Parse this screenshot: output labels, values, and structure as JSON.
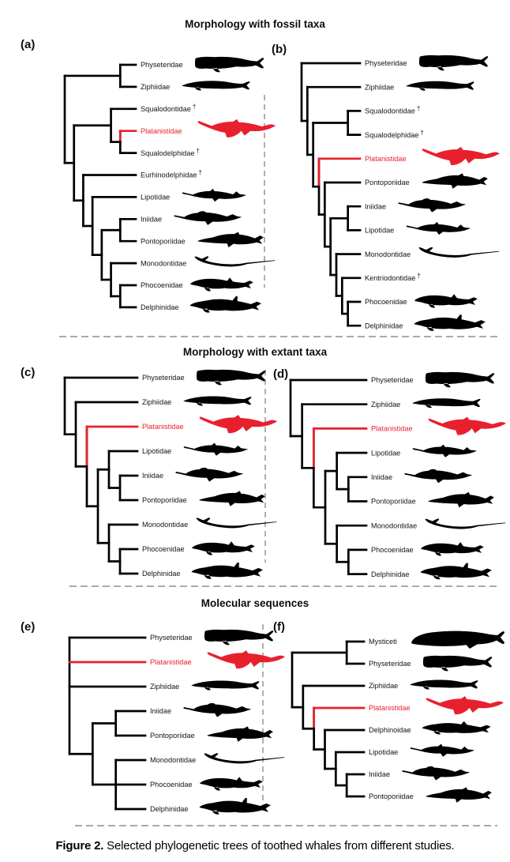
{
  "sections": [
    {
      "title": "Morphology with fossil taxa"
    },
    {
      "title": "Morphology with extant taxa"
    },
    {
      "title": "Molecular sequences"
    }
  ],
  "caption": {
    "label": "Figure 2.",
    "text": " Selected phylogenetic trees of toothed whales from different studies."
  },
  "colors": {
    "highlight": "#e8202e",
    "branch": "#000000",
    "separator": "#8d8d8d",
    "label": "#151515"
  },
  "panels": {
    "a": {
      "label": "(a)",
      "highlight_stem": true,
      "taxa": [
        {
          "name": "Physeteridae",
          "silhouette": "sperm-whale"
        },
        {
          "name": "Ziphiidae",
          "silhouette": "beaked-whale"
        },
        {
          "name": "Squalodontidae",
          "extinct": true
        },
        {
          "name": "Platanistidae",
          "silhouette": "platanistid",
          "highlight": true
        },
        {
          "name": "Squalodelphidae",
          "extinct": true
        },
        {
          "name": "Eurhinodelphidae",
          "extinct": true
        },
        {
          "name": "Lipotidae",
          "silhouette": "lipotid"
        },
        {
          "name": "Iniidae",
          "silhouette": "iniid"
        },
        {
          "name": "Pontoporiidae",
          "silhouette": "pontoporiid"
        },
        {
          "name": "Monodontidae",
          "silhouette": "monodontid"
        },
        {
          "name": "Phocoenidae",
          "silhouette": "phocoenid"
        },
        {
          "name": "Delphinidae",
          "silhouette": "delphinid"
        }
      ],
      "topology": [
        [
          0,
          1
        ],
        [
          [
            2,
            [
              3,
              4
            ]
          ],
          [
            5,
            [
              6,
              [
                [
                  7,
                  8
                ],
                [
                  9,
                  [
                    10,
                    11
                  ]
                ]
              ]
            ]
          ]
        ]
      ]
    },
    "b": {
      "label": "(b)",
      "highlight_stem": true,
      "taxa": [
        {
          "name": "Physeteridae",
          "silhouette": "sperm-whale"
        },
        {
          "name": "Ziphiidae",
          "silhouette": "beaked-whale"
        },
        {
          "name": "Squalodontidae",
          "extinct": true
        },
        {
          "name": "Squalodelphidae",
          "extinct": true
        },
        {
          "name": "Platanistidae",
          "silhouette": "platanistid",
          "highlight": true
        },
        {
          "name": "Pontoporiidae",
          "silhouette": "pontoporiid"
        },
        {
          "name": "Iniidae",
          "silhouette": "iniid"
        },
        {
          "name": "Lipotidae",
          "silhouette": "lipotid"
        },
        {
          "name": "Monodontidae",
          "silhouette": "monodontid"
        },
        {
          "name": "Kentriodontidae",
          "extinct": true
        },
        {
          "name": "Phocoenidae",
          "silhouette": "phocoenid"
        },
        {
          "name": "Delphinidae",
          "silhouette": "delphinid"
        }
      ],
      "topology": [
        0,
        [
          1,
          [
            [
              2,
              3
            ],
            [
              4,
              [
                5,
                [
                  [
                    6,
                    7
                  ],
                  [
                    8,
                    [
                      9,
                      [
                        10,
                        11
                      ]
                    ]
                  ]
                ]
              ]
            ]
          ]
        ]
      ]
    },
    "c": {
      "label": "(c)",
      "highlight_stem": true,
      "taxa": [
        {
          "name": "Physeteridae",
          "silhouette": "sperm-whale"
        },
        {
          "name": "Ziphiidae",
          "silhouette": "beaked-whale"
        },
        {
          "name": "Platanistidae",
          "silhouette": "platanistid",
          "highlight": true
        },
        {
          "name": "Lipotidae",
          "silhouette": "lipotid"
        },
        {
          "name": "Iniidae",
          "silhouette": "iniid"
        },
        {
          "name": "Pontoporiidae",
          "silhouette": "pontoporiid"
        },
        {
          "name": "Monodontidae",
          "silhouette": "monodontid"
        },
        {
          "name": "Phocoenidae",
          "silhouette": "phocoenid"
        },
        {
          "name": "Delphinidae",
          "silhouette": "delphinid"
        }
      ],
      "topology": [
        0,
        [
          1,
          [
            2,
            [
              [
                3,
                [
                  4,
                  5
                ]
              ],
              [
                6,
                [
                  7,
                  8
                ]
              ]
            ]
          ]
        ]
      ]
    },
    "d": {
      "label": "(d)",
      "highlight_stem": true,
      "taxa": [
        {
          "name": "Physeteridae",
          "silhouette": "sperm-whale"
        },
        {
          "name": "Ziphiidae",
          "silhouette": "beaked-whale"
        },
        {
          "name": "Platanistidae",
          "silhouette": "platanistid",
          "highlight": true
        },
        {
          "name": "Lipotidae",
          "silhouette": "lipotid"
        },
        {
          "name": "Iniidae",
          "silhouette": "iniid"
        },
        {
          "name": "Pontoporiidae",
          "silhouette": "pontoporiid"
        },
        {
          "name": "Monodontidae",
          "silhouette": "monodontid"
        },
        {
          "name": "Phocoenidae",
          "silhouette": "phocoenid"
        },
        {
          "name": "Delphinidae",
          "silhouette": "delphinid"
        }
      ],
      "topology": [
        0,
        [
          1,
          [
            2,
            [
              [
                3,
                [
                  4,
                  5
                ]
              ],
              [
                6,
                [
                  7,
                  8
                ]
              ]
            ]
          ]
        ]
      ]
    },
    "e": {
      "label": "(e)",
      "highlight_stem": false,
      "taxa": [
        {
          "name": "Physeteridae",
          "silhouette": "sperm-whale"
        },
        {
          "name": "Platanistidae",
          "silhouette": "platanistid",
          "highlight": true
        },
        {
          "name": "Ziphiidae",
          "silhouette": "beaked-whale"
        },
        {
          "name": "Iniidae",
          "silhouette": "iniid"
        },
        {
          "name": "Pontoporiidae",
          "silhouette": "pontoporiid"
        },
        {
          "name": "Monodontidae",
          "silhouette": "monodontid"
        },
        {
          "name": "Phocoenidae",
          "silhouette": "phocoenid"
        },
        {
          "name": "Delphinidae",
          "silhouette": "delphinid"
        }
      ],
      "topology": [
        0,
        1,
        2,
        [
          [
            3,
            4
          ],
          [
            5,
            6,
            7
          ]
        ]
      ]
    },
    "f": {
      "label": "(f)",
      "highlight_stem": true,
      "taxa": [
        {
          "name": "Mysticeti",
          "silhouette": "mysticete"
        },
        {
          "name": "Physeteridae",
          "silhouette": "sperm-whale"
        },
        {
          "name": "Ziphiidae",
          "silhouette": "beaked-whale"
        },
        {
          "name": "Platanistidae",
          "silhouette": "platanistid",
          "highlight": true
        },
        {
          "name": "Delphinoidae",
          "silhouette": "delphinoid"
        },
        {
          "name": "Lipotidae",
          "silhouette": "lipotid"
        },
        {
          "name": "Iniidae",
          "silhouette": "iniid"
        },
        {
          "name": "Pontoporiidae",
          "silhouette": "pontoporiid"
        }
      ],
      "topology": [
        [
          0,
          1
        ],
        [
          2,
          [
            3,
            [
              4,
              [
                5,
                [
                  6,
                  7
                ]
              ]
            ]
          ]
        ]
      ]
    }
  }
}
